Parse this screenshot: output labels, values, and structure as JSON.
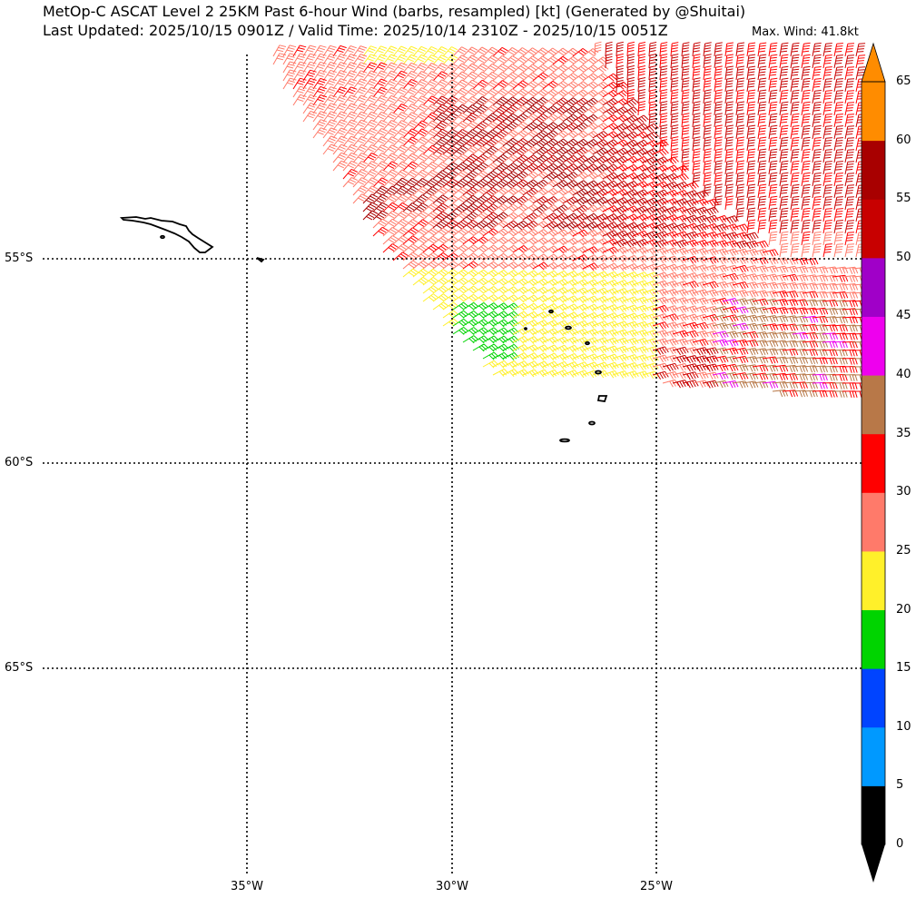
{
  "title_line1": "MetOp-C ASCAT Level 2 25KM Past 6-hour Wind (barbs, resampled) [kt] (Generated by @Shuitai)",
  "title_line2": "Last Updated: 2025/10/15 0901Z / Valid Time: 2025/10/14 2310Z - 2025/10/15 0051Z",
  "max_wind": "Max. Wind: 41.8kt",
  "lat_labels": [
    "55°S",
    "60°S",
    "65°S"
  ],
  "lon_labels": [
    "35°W",
    "30°W",
    "25°W"
  ],
  "colorbar": {
    "ticks": [
      "0",
      "5",
      "10",
      "15",
      "20",
      "25",
      "30",
      "35",
      "40",
      "45",
      "50",
      "55",
      "60",
      "65"
    ],
    "colors": [
      "#000000",
      "#0099ff",
      "#0044ff",
      "#00d400",
      "#fff02a",
      "#ff7a6a",
      "#ff0000",
      "#b87848",
      "#ee00ee",
      "#a000c8",
      "#c80000",
      "#a80000",
      "#ff8c00"
    ]
  },
  "barb_colors": {
    "20-25": "#fff02a",
    "15-20": "#00d400",
    "25-30": "#ff7a6a",
    "30-35": "#ff0000",
    "35-40": "#b87848",
    "40-45": "#ee00ee",
    "50-55": "#c80000",
    "55-60": "#a80000"
  }
}
